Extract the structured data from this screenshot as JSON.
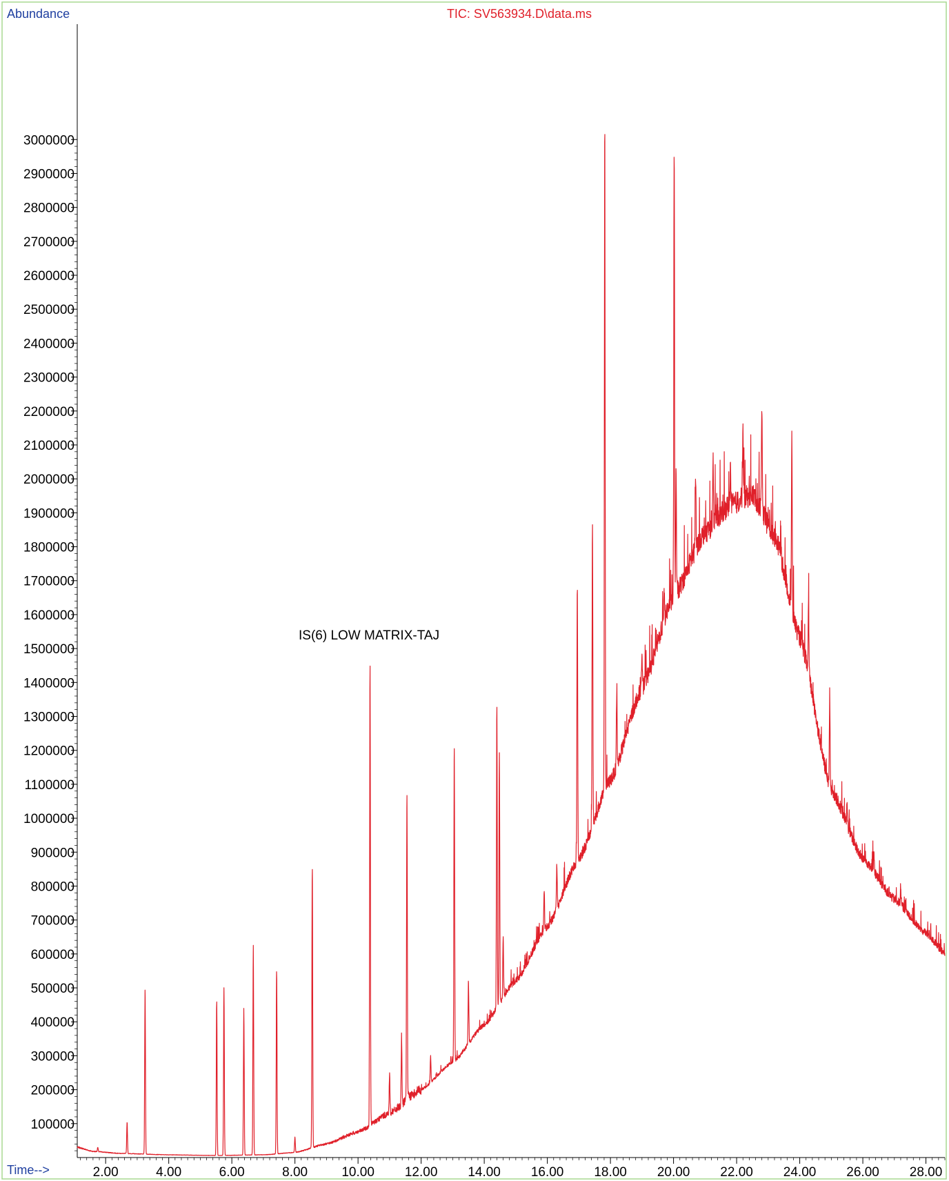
{
  "header": {
    "ylabel": "Abundance",
    "title": "TIC: SV563934.D\\data.ms",
    "xlabel": "Time-->"
  },
  "annotation": {
    "text": "IS(6) LOW MATRIX-TAJ"
  },
  "colors": {
    "trace": "#e0202a",
    "axis_label": "#2040a0",
    "frame": "#a8d890",
    "axis": "#000000"
  },
  "chart_data": {
    "type": "line",
    "title": "TIC: SV563934.D\\data.ms",
    "xlabel": "Time-->",
    "ylabel": "Abundance",
    "xlim": [
      1.1,
      28.6
    ],
    "ylim": [
      0,
      3000000
    ],
    "xticks": [
      2,
      4,
      6,
      8,
      10,
      12,
      14,
      16,
      18,
      20,
      22,
      24,
      26,
      28
    ],
    "xtick_labels": [
      "2.00",
      "4.00",
      "6.00",
      "8.00",
      "10.00",
      "12.00",
      "14.00",
      "16.00",
      "18.00",
      "20.00",
      "22.00",
      "24.00",
      "26.00",
      "28.00"
    ],
    "yticks": [
      100000,
      200000,
      300000,
      400000,
      500000,
      600000,
      700000,
      800000,
      900000,
      1000000,
      1100000,
      1200000,
      1300000,
      1400000,
      1500000,
      1600000,
      1700000,
      1800000,
      1900000,
      2000000,
      2100000,
      2200000,
      2300000,
      2400000,
      2500000,
      2600000,
      2700000,
      2800000,
      2900000,
      3000000
    ],
    "ytick_labels": [
      "100000",
      "200000",
      "300000",
      "400000",
      "500000",
      "600000",
      "700000",
      "800000",
      "900000",
      "1000000",
      "1100000",
      "1200000",
      "1300000",
      "1400000",
      "1500000",
      "1600000",
      "1700000",
      "1800000",
      "1900000",
      "2000000",
      "2100000",
      "2200000",
      "2300000",
      "2400000",
      "2500000",
      "2600000",
      "2700000",
      "2800000",
      "2900000",
      "3000000"
    ],
    "baseline": [
      [
        1.1,
        30000
      ],
      [
        1.6,
        18000
      ],
      [
        2.5,
        12000
      ],
      [
        4.0,
        8000
      ],
      [
        5.5,
        6000
      ],
      [
        7.0,
        8000
      ],
      [
        8.0,
        15000
      ],
      [
        9.0,
        40000
      ],
      [
        10.0,
        75000
      ],
      [
        11.0,
        130000
      ],
      [
        12.0,
        200000
      ],
      [
        13.0,
        280000
      ],
      [
        14.0,
        390000
      ],
      [
        15.0,
        520000
      ],
      [
        16.0,
        680000
      ],
      [
        17.0,
        880000
      ],
      [
        18.0,
        1110000
      ],
      [
        19.0,
        1380000
      ],
      [
        20.0,
        1650000
      ],
      [
        21.0,
        1840000
      ],
      [
        21.8,
        1920000
      ],
      [
        22.5,
        1950000
      ],
      [
        23.2,
        1830000
      ],
      [
        24.0,
        1530000
      ],
      [
        25.0,
        1080000
      ],
      [
        26.0,
        880000
      ],
      [
        27.0,
        760000
      ],
      [
        28.0,
        660000
      ],
      [
        28.6,
        600000
      ]
    ],
    "peaks": [
      {
        "rt": 1.75,
        "abundance": 30000
      },
      {
        "rt": 2.68,
        "abundance": 105000
      },
      {
        "rt": 3.25,
        "abundance": 500000
      },
      {
        "rt": 5.52,
        "abundance": 465000
      },
      {
        "rt": 5.75,
        "abundance": 500000
      },
      {
        "rt": 6.38,
        "abundance": 440000
      },
      {
        "rt": 6.68,
        "abundance": 625000
      },
      {
        "rt": 7.42,
        "abundance": 555000
      },
      {
        "rt": 8.0,
        "abundance": 60000
      },
      {
        "rt": 8.55,
        "abundance": 860000
      },
      {
        "rt": 10.38,
        "abundance": 1460000
      },
      {
        "rt": 11.0,
        "abundance": 245000
      },
      {
        "rt": 11.38,
        "abundance": 355000
      },
      {
        "rt": 11.55,
        "abundance": 1085000
      },
      {
        "rt": 12.3,
        "abundance": 300000
      },
      {
        "rt": 13.05,
        "abundance": 1220000
      },
      {
        "rt": 13.5,
        "abundance": 515000
      },
      {
        "rt": 14.4,
        "abundance": 1340000
      },
      {
        "rt": 14.48,
        "abundance": 1200000
      },
      {
        "rt": 14.6,
        "abundance": 655000
      },
      {
        "rt": 15.9,
        "abundance": 790000
      },
      {
        "rt": 16.3,
        "abundance": 860000
      },
      {
        "rt": 16.95,
        "abundance": 1695000
      },
      {
        "rt": 17.43,
        "abundance": 1865000
      },
      {
        "rt": 17.82,
        "abundance": 3035000
      },
      {
        "rt": 18.2,
        "abundance": 1370000
      },
      {
        "rt": 19.0,
        "abundance": 1490000
      },
      {
        "rt": 19.7,
        "abundance": 1670000
      },
      {
        "rt": 20.02,
        "abundance": 2970000
      },
      {
        "rt": 20.08,
        "abundance": 2020000
      },
      {
        "rt": 20.7,
        "abundance": 2000000
      },
      {
        "rt": 21.25,
        "abundance": 2060000
      },
      {
        "rt": 21.8,
        "abundance": 2040000
      },
      {
        "rt": 22.2,
        "abundance": 2140000
      },
      {
        "rt": 22.8,
        "abundance": 2220000
      },
      {
        "rt": 23.4,
        "abundance": 1830000
      },
      {
        "rt": 23.75,
        "abundance": 2120000
      },
      {
        "rt": 24.28,
        "abundance": 1630000
      },
      {
        "rt": 24.95,
        "abundance": 1340000
      },
      {
        "rt": 25.5,
        "abundance": 1040000
      },
      {
        "rt": 26.35,
        "abundance": 910000
      },
      {
        "rt": 27.2,
        "abundance": 790000
      }
    ]
  }
}
